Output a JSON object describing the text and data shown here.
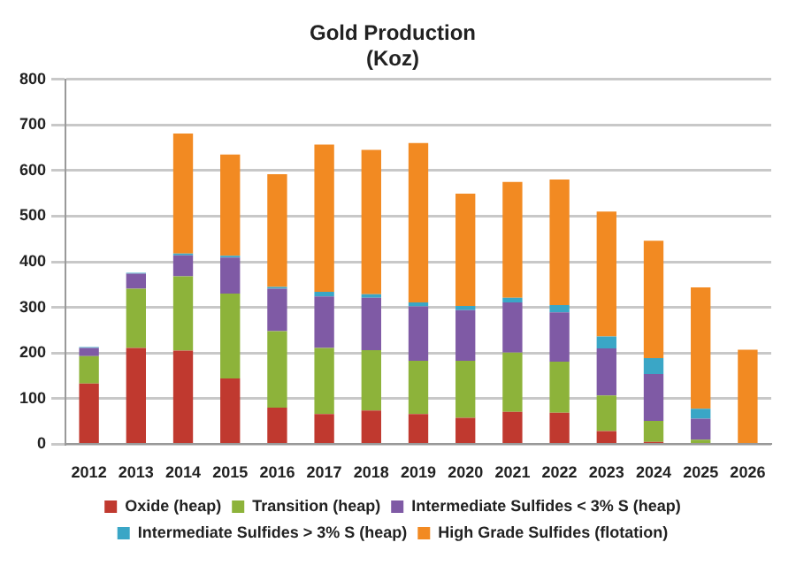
{
  "chart_data": {
    "type": "bar",
    "title": "Gold Production",
    "subtitle": "(Koz)",
    "categories": [
      "2012",
      "2013",
      "2014",
      "2015",
      "2016",
      "2017",
      "2018",
      "2019",
      "2020",
      "2021",
      "2022",
      "2023",
      "2024",
      "2025",
      "2026"
    ],
    "stacked": true,
    "series": [
      {
        "name": "Oxide (heap)",
        "color": "#c0392f",
        "values": [
          133,
          211,
          205,
          144,
          80,
          66,
          74,
          66,
          58,
          71,
          69,
          29,
          5,
          0,
          0
        ]
      },
      {
        "name": "Transition (heap)",
        "color": "#8db33a",
        "values": [
          60,
          130,
          163,
          186,
          168,
          145,
          132,
          117,
          125,
          130,
          112,
          78,
          46,
          10,
          0
        ]
      },
      {
        "name": "Intermediate Sulfides < 3% S (heap)",
        "color": "#7f5aa5",
        "values": [
          18,
          33,
          46,
          79,
          93,
          113,
          115,
          119,
          111,
          110,
          108,
          103,
          103,
          46,
          0
        ]
      },
      {
        "name": "Intermediate Sulfides > 3% S (heap)",
        "color": "#3aa6c6",
        "values": [
          2,
          2,
          4,
          4,
          4,
          10,
          8,
          9,
          9,
          10,
          16,
          26,
          35,
          22,
          0
        ]
      },
      {
        "name": "High Grade Sulfides (flotation)",
        "color": "#f28a22",
        "values": [
          0,
          0,
          263,
          222,
          247,
          323,
          316,
          349,
          246,
          254,
          275,
          274,
          257,
          266,
          207
        ]
      }
    ],
    "ylim": [
      0,
      800
    ],
    "yticks": [
      0,
      100,
      200,
      300,
      400,
      500,
      600,
      700,
      800
    ],
    "grid": "y",
    "legend": "bottom"
  }
}
